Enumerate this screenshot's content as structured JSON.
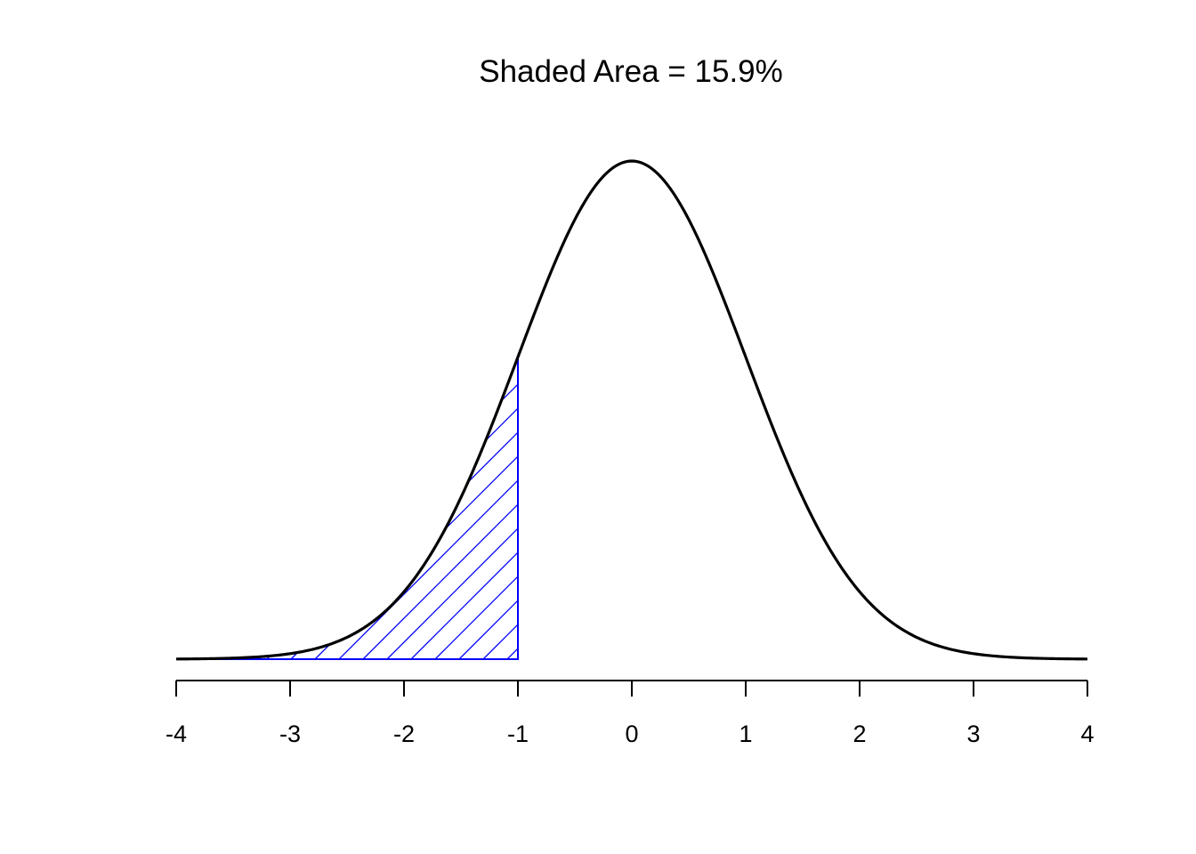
{
  "chart_data": {
    "type": "area",
    "title": "Shaded Area = 15.9%",
    "xlabel": "",
    "ylabel": "",
    "xlim": [
      -4,
      4
    ],
    "ylim": [
      0,
      0.4
    ],
    "x_ticks": [
      "-4",
      "-3",
      "-2",
      "-1",
      "0",
      "1",
      "2",
      "3",
      "4"
    ],
    "curve": {
      "distribution": "standard normal density",
      "mean": 0,
      "sd": 1,
      "color": "#000000"
    },
    "shaded_region": {
      "from": -4,
      "to": -1,
      "area_percent": 15.9,
      "color": "#0000ff",
      "pattern": "diagonal-hatch"
    },
    "grid": false,
    "y_axis_visible": false
  }
}
